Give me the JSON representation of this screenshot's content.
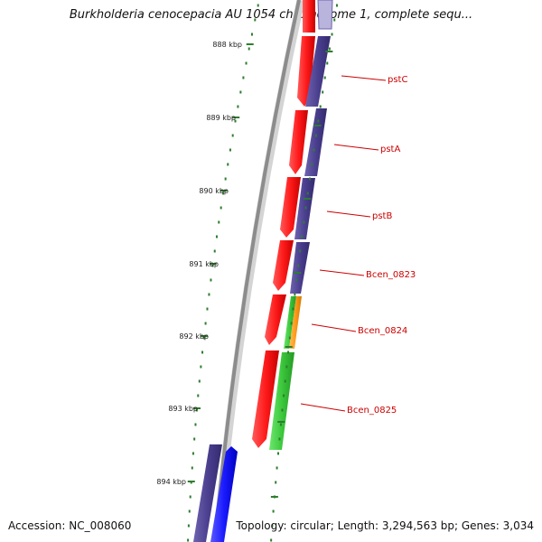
{
  "title": "Burkholderia cenocepacia AU 1054 chromosome 1, complete sequ...",
  "footer": {
    "accession": "Accession: NC_008060",
    "summary": "Topology: circular; Length: 3,294,563 bp; Genes: 3,034"
  },
  "colors": {
    "backbone": "#8c8c8c",
    "forward_cds": "#ff1a1a",
    "reverse_cds": "#4b3f8f",
    "green_feature": "#3cc83c",
    "orange_feature": "#ff9a1a",
    "blue_feature": "#1a1aff",
    "tick": "#2e7d2e",
    "label": "#cc0000"
  },
  "axis": {
    "unit": "kbp",
    "ticks": [
      "888 kbp",
      "889 kbp",
      "890 kbp",
      "891 kbp",
      "892 kbp",
      "893 kbp",
      "894 kbp"
    ]
  },
  "gene_labels": [
    "pstC",
    "pstA",
    "pstB",
    "Bcen_0823",
    "Bcen_0824",
    "Bcen_0825"
  ]
}
